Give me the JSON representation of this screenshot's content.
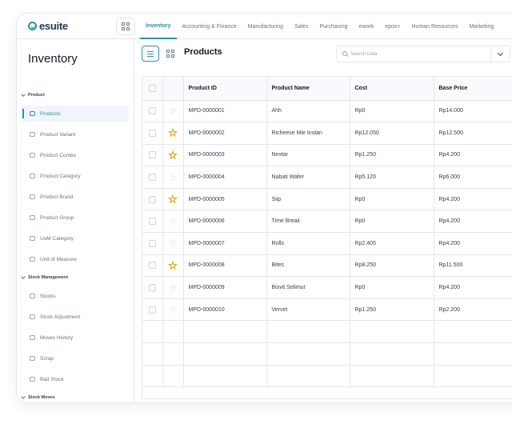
{
  "brand": {
    "name": "esuite"
  },
  "topnav": [
    {
      "label": "Inventory",
      "active": true
    },
    {
      "label": "Accounting & Finance",
      "active": false
    },
    {
      "label": "Manufacturing",
      "active": false
    },
    {
      "label": "Sales",
      "active": false
    },
    {
      "label": "Purchasing",
      "active": false
    },
    {
      "label": "ework",
      "active": false
    },
    {
      "label": "epos+",
      "active": false
    },
    {
      "label": "Human Resources",
      "active": false
    },
    {
      "label": "Marketing",
      "active": false
    }
  ],
  "sidebar": {
    "title": "Inventory",
    "sections": [
      {
        "label": "Product"
      },
      {
        "label": "Stock Management"
      },
      {
        "label": "Stock Moves"
      }
    ],
    "items": [
      {
        "label": "Products",
        "active": true,
        "icon": "products-icon"
      },
      {
        "label": "Product Variant",
        "icon": "product-variant-icon"
      },
      {
        "label": "Product Combo",
        "icon": "product-combo-icon"
      },
      {
        "label": "Product Category",
        "icon": "product-category-icon"
      },
      {
        "label": "Product Brand",
        "icon": "product-brand-icon"
      },
      {
        "label": "Product Group",
        "icon": "product-group-icon"
      },
      {
        "label": "UoM Category",
        "icon": "uom-category-icon"
      },
      {
        "label": "Unit of Measure",
        "icon": "unit-of-measure-icon"
      },
      {
        "label": "Stocks",
        "icon": "stocks-icon"
      },
      {
        "label": "Stock Adjustment",
        "icon": "stock-adjustment-icon"
      },
      {
        "label": "Moves History",
        "icon": "moves-history-icon"
      },
      {
        "label": "Scrap",
        "icon": "scrap-icon"
      },
      {
        "label": "Bad Stock",
        "icon": "bad-stock-icon"
      }
    ]
  },
  "content": {
    "title": "Products",
    "search": {
      "placeholder": "Search Data",
      "value": ""
    }
  },
  "table": {
    "columns": [
      "Product ID",
      "Product Name",
      "Cost",
      "Base Price"
    ],
    "rows": [
      {
        "id": "MPD-0000001",
        "name": "Ahh",
        "cost": "Rp0",
        "price": "Rp14.000",
        "fav": false
      },
      {
        "id": "MPD-0000002",
        "name": "Richeese Mie Instan",
        "cost": "Rp12.050",
        "price": "Rp12.500",
        "fav": true
      },
      {
        "id": "MPD-0000003",
        "name": "Nextar",
        "cost": "Rp1.250",
        "price": "Rp4.200",
        "fav": true
      },
      {
        "id": "MPD-0000004",
        "name": "Nabati Wafer",
        "cost": "Rp5.120",
        "price": "Rp6.000",
        "fav": false
      },
      {
        "id": "MPD-0000005",
        "name": "Siip",
        "cost": "Rp0",
        "price": "Rp4.200",
        "fav": true
      },
      {
        "id": "MPD-0000006",
        "name": "Time Break",
        "cost": "Rp0",
        "price": "Rp4.200",
        "fav": false
      },
      {
        "id": "MPD-0000007",
        "name": "Rolls",
        "cost": "Rp2.405",
        "price": "Rp4.200",
        "fav": false
      },
      {
        "id": "MPD-0000008",
        "name": "Bites",
        "cost": "Rp8.250",
        "price": "Rp11.500",
        "fav": true
      },
      {
        "id": "MPD-0000009",
        "name": "Bisvit Selimut",
        "cost": "Rp0",
        "price": "Rp4.200",
        "fav": false
      },
      {
        "id": "MPD-0000010",
        "name": "Vervet",
        "cost": "Rp1.250",
        "price": "Rp2.200",
        "fav": false
      }
    ]
  },
  "colors": {
    "accent": "#2c8fa8",
    "favorite": "#e0a316"
  }
}
